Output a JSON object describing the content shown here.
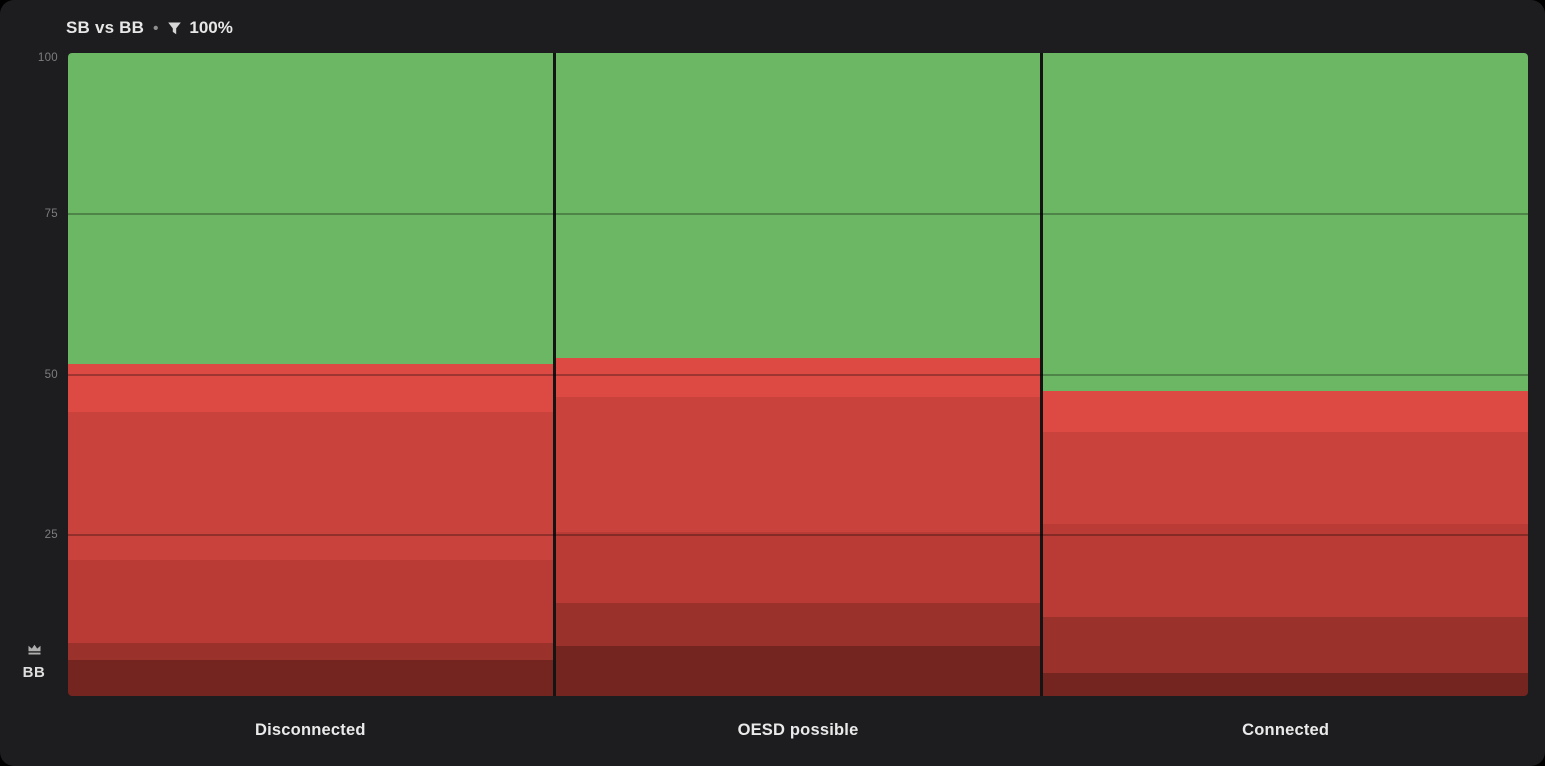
{
  "header": {
    "title": "SB vs BB",
    "separator": "•",
    "filter_value": "100%"
  },
  "corner_label": {
    "text": "BB"
  },
  "colors": {
    "background": "#1d1d1f",
    "green": "#6cb763",
    "red_bright": "#dc4a43",
    "red_medium": "#c9433c",
    "red_dark": "#ba3b35",
    "red_darker": "#9a312b",
    "red_darkest": "#74251f",
    "text_primary": "#e7e7e7",
    "text_muted": "#7d7d7f"
  },
  "chart_data": {
    "type": "bar",
    "stacked": true,
    "orientation": "vertical",
    "title": "SB vs BB • 100%",
    "xlabel": "",
    "ylabel": "",
    "ylim": [
      0,
      100
    ],
    "grid": true,
    "gridlines": [
      75,
      50,
      25
    ],
    "y_ticks": [
      {
        "label": "100",
        "value": 100
      },
      {
        "label": "75",
        "value": 75
      },
      {
        "label": "50",
        "value": 50
      },
      {
        "label": "25",
        "value": 25
      }
    ],
    "categories": [
      "Disconnected",
      "OESD possible",
      "Connected"
    ],
    "series": [
      {
        "name": "green",
        "color": "#6cb763",
        "values": [
          48.4,
          47.4,
          52.6
        ]
      },
      {
        "name": "red-bright",
        "color": "#dc4a43",
        "values": [
          7.5,
          6.1,
          6.4
        ]
      },
      {
        "name": "red-medium",
        "color": "#c9433c",
        "values": [
          23.0,
          21.0,
          14.2
        ]
      },
      {
        "name": "red-dark",
        "color": "#ba3b35",
        "values": [
          12.9,
          11.0,
          14.5
        ]
      },
      {
        "name": "red-darker",
        "color": "#9a312b",
        "values": [
          2.6,
          6.7,
          8.7
        ]
      },
      {
        "name": "red-darkest",
        "color": "#74251f",
        "values": [
          5.6,
          7.8,
          3.6
        ]
      }
    ],
    "legend": "none",
    "note": "stacked percentage columns, green on top, progressively darker reds toward bottom"
  }
}
